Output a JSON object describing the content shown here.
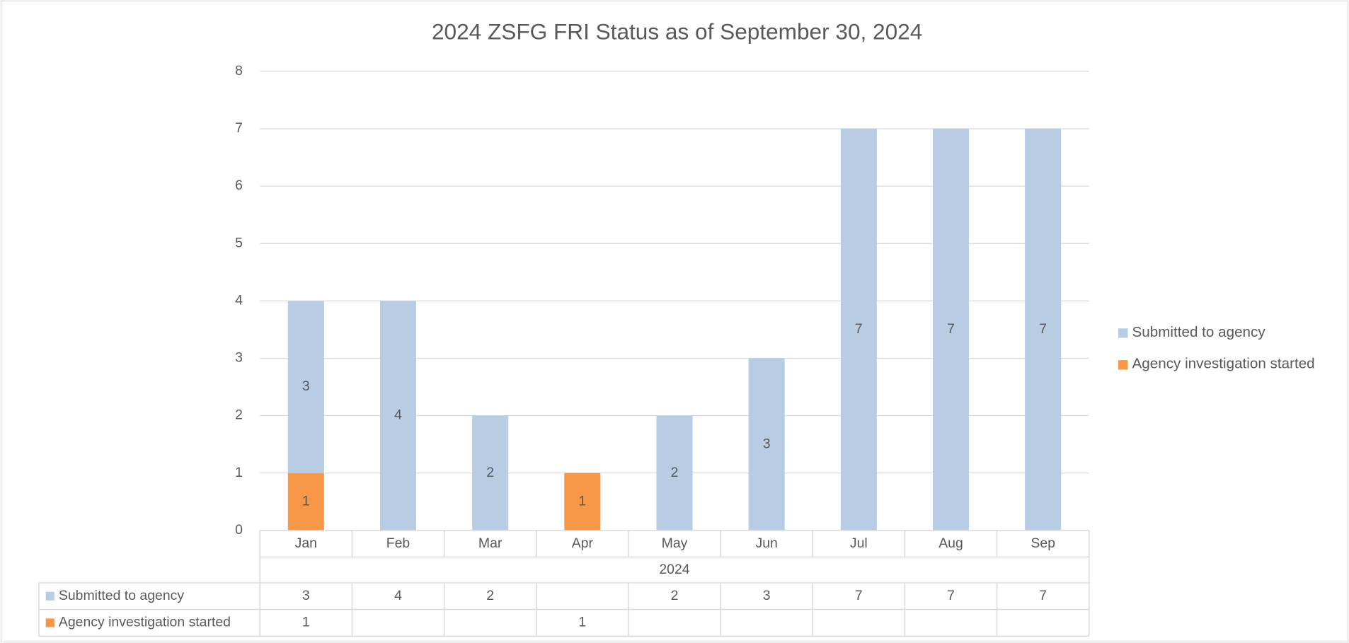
{
  "chart_data": {
    "type": "bar",
    "stacked": true,
    "title": "2024 ZSFG FRI Status as of September 30, 2024",
    "categories": [
      "Jan",
      "Feb",
      "Mar",
      "Apr",
      "May",
      "Jun",
      "Jul",
      "Aug",
      "Sep"
    ],
    "category_group": "2024",
    "series": [
      {
        "name": "Submitted to agency",
        "color": "#b8cce4",
        "values": [
          3,
          4,
          2,
          null,
          2,
          3,
          7,
          7,
          7
        ]
      },
      {
        "name": "Agency investigation started",
        "color": "#f79646",
        "values": [
          1,
          null,
          null,
          1,
          null,
          null,
          null,
          null,
          null
        ]
      }
    ],
    "ylim": [
      0,
      8
    ],
    "yticks": [
      0,
      1,
      2,
      3,
      4,
      5,
      6,
      7,
      8
    ],
    "grid": true,
    "legend": "right",
    "data_table": true
  }
}
